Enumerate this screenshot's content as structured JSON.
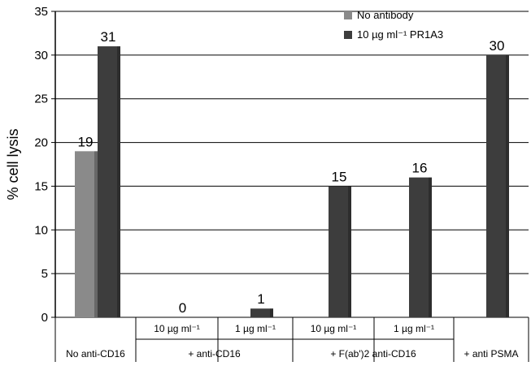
{
  "chart_data": {
    "type": "bar",
    "ylabel": "% cell lysis",
    "xlabel": "",
    "title": "",
    "ylim": [
      0,
      35
    ],
    "yticks": [
      0,
      5,
      10,
      15,
      20,
      25,
      30,
      35
    ],
    "grid": true,
    "legend_position": "top-right",
    "colors": {
      "No antibody": "#8a8a8a",
      "10 µg ml⁻¹ PR1A3": "#3d3d3d",
      "grid": "#000000"
    },
    "legend": [
      "No antibody",
      "10 µg ml⁻¹ PR1A3"
    ],
    "categories": [
      "No anti-CD16",
      "+ anti-CD16 10 µg ml⁻¹",
      "+ anti-CD16 1 µg ml⁻¹",
      "+ F(ab')2 anti-CD16 10 µg ml⁻¹",
      "+ F(ab')2 anti-CD16 1 µg ml⁻¹",
      "+ anti PSMA"
    ],
    "bars": [
      {
        "series": "No antibody",
        "category": "No anti-CD16",
        "value": 19,
        "label": "19"
      },
      {
        "series": "10 µg ml⁻¹ PR1A3",
        "category": "No anti-CD16",
        "value": 31,
        "label": "31"
      },
      {
        "series": "10 µg ml⁻¹ PR1A3",
        "category": "+ anti-CD16 10 µg ml⁻¹",
        "value": 0,
        "label": "0"
      },
      {
        "series": "10 µg ml⁻¹ PR1A3",
        "category": "+ anti-CD16 1 µg ml⁻¹",
        "value": 1,
        "label": "1"
      },
      {
        "series": "10 µg ml⁻¹ PR1A3",
        "category": "+ F(ab')2 anti-CD16 10 µg ml⁻¹",
        "value": 15,
        "label": "15"
      },
      {
        "series": "10 µg ml⁻¹ PR1A3",
        "category": "+ F(ab')2 anti-CD16 1 µg ml⁻¹",
        "value": 16,
        "label": "16"
      },
      {
        "series": "10 µg ml⁻¹ PR1A3",
        "category": "+ anti PSMA",
        "value": 30,
        "label": "30"
      }
    ],
    "x_axis_table": {
      "sub_labels": [
        "10 µg ml⁻¹",
        "1 µg ml⁻¹",
        "10 µg ml⁻¹",
        "1 µg ml⁻¹"
      ],
      "group_labels": [
        "No anti-CD16",
        "+ anti-CD16",
        "+ F(ab')2 anti-CD16",
        "+ anti PSMA"
      ]
    }
  }
}
